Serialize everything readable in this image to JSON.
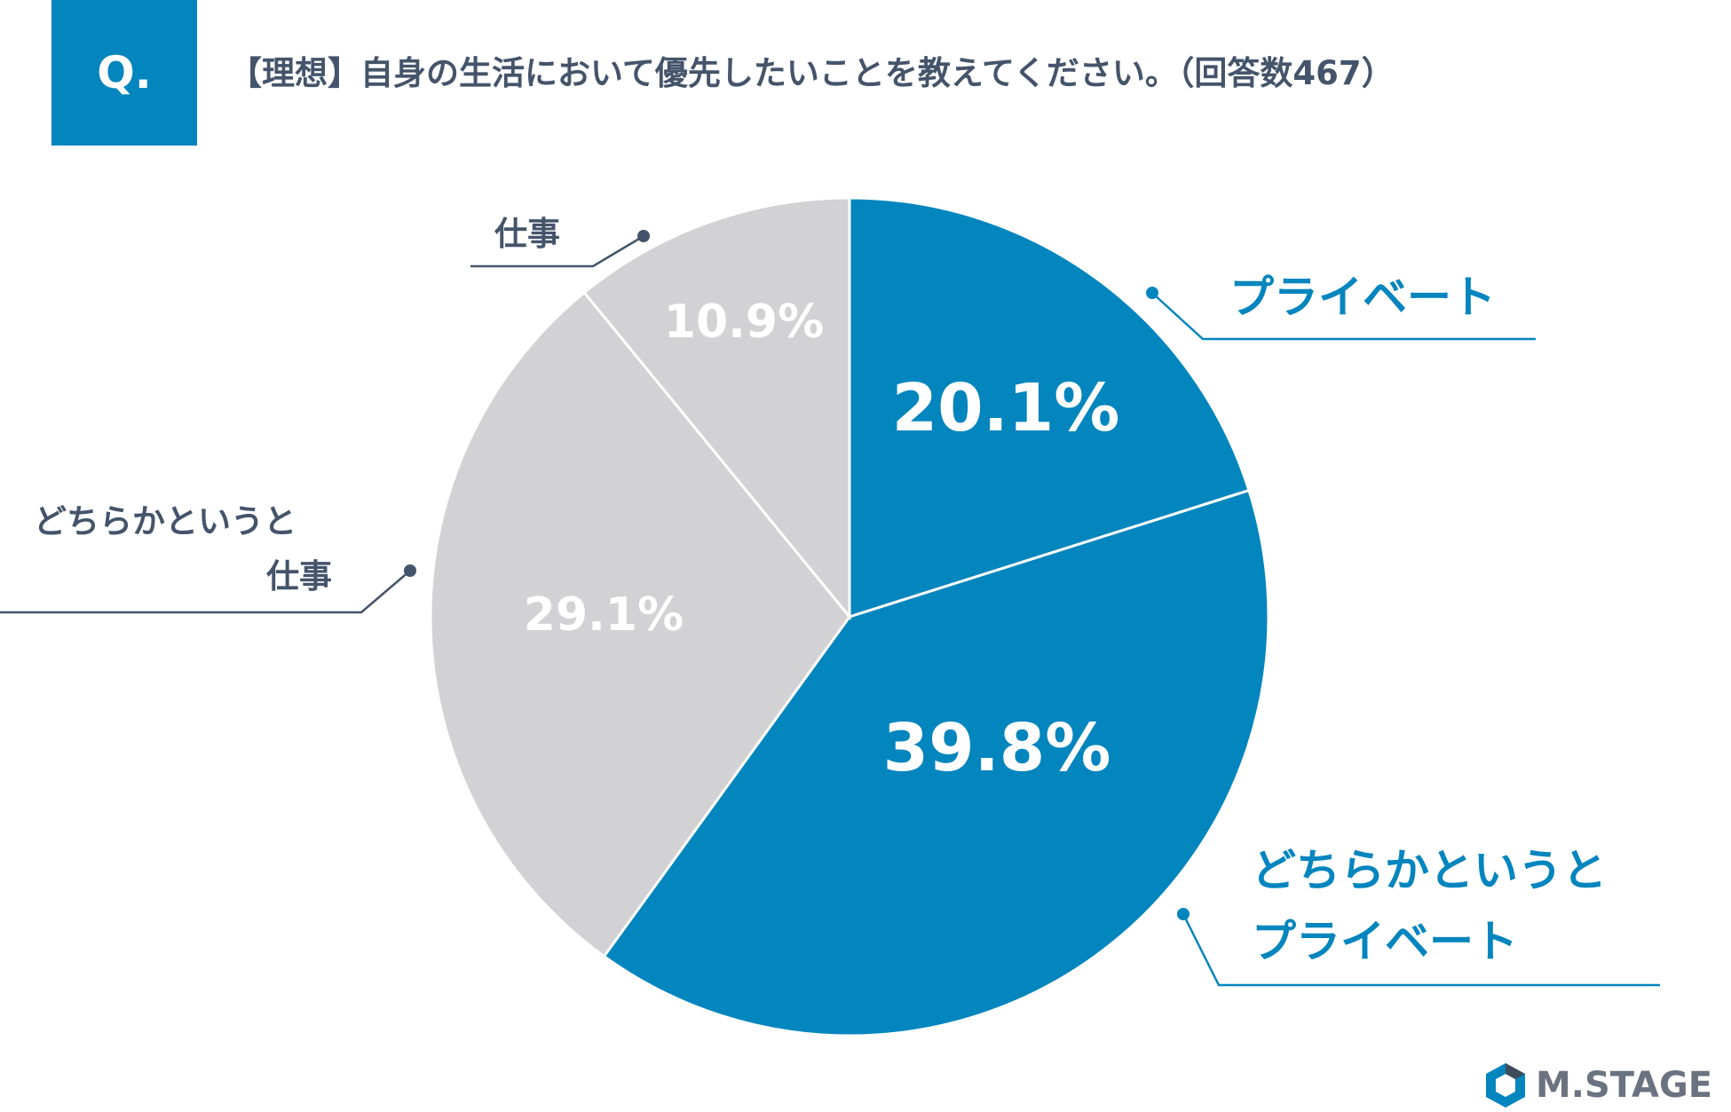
{
  "header": {
    "badge": "Q.",
    "question": "【理想】自身の生活において優先したいことを教えてください。（回答数467）"
  },
  "chart_data": {
    "type": "pie",
    "title": "【理想】自身の生活において優先したいことを教えてください。（回答数467）",
    "start_angle_deg": 0,
    "direction": "clockwise",
    "slices": [
      {
        "label": "プライベート",
        "label_lines": [
          "プライベート"
        ],
        "value": 20.1,
        "value_label": "20.1%",
        "color": "#0385be",
        "label_color": "#0385be"
      },
      {
        "label": "どちらかというとプライベート",
        "label_lines": [
          "どちらかというと",
          "プライベート"
        ],
        "value": 39.8,
        "value_label": "39.8%",
        "color": "#0385be",
        "label_color": "#0385be"
      },
      {
        "label": "どちらかというと仕事",
        "label_lines": [
          "どちらかというと",
          "仕事"
        ],
        "value": 29.1,
        "value_label": "29.1%",
        "color": "#d2d1d3",
        "label_color": "#44546a"
      },
      {
        "label": "仕事",
        "label_lines": [
          "仕事"
        ],
        "value": 10.9,
        "value_label": "10.9%",
        "color": "#d2d1d3",
        "label_color": "#44546a"
      }
    ]
  },
  "colors": {
    "accent": "#0385be",
    "gray": "#d2d1d3",
    "text": "#44546a",
    "logo": "#6b7280"
  },
  "logo": {
    "text": "M.STAGE"
  }
}
